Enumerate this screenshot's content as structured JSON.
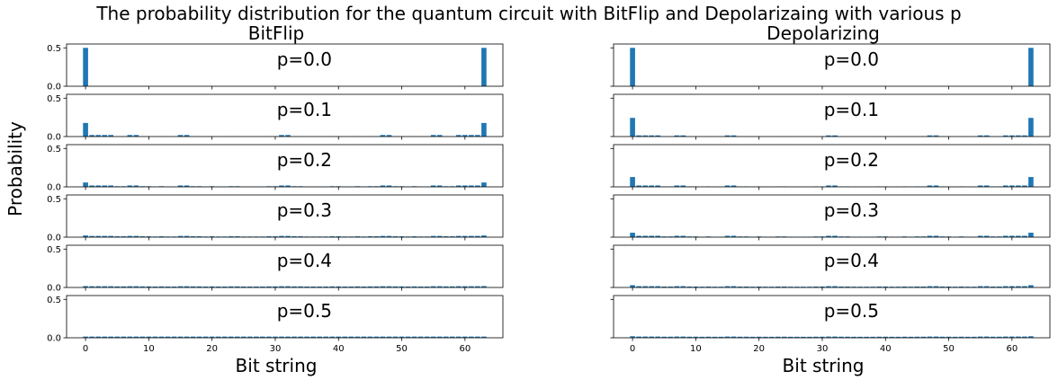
{
  "chart_data": {
    "type": "bar",
    "suptitle": "The probability distribution for the quantum circuit with BitFlip and Depolarizaing with various p",
    "ylabel": "Probability",
    "xlabel": "Bit string",
    "xlim": [
      -3,
      66
    ],
    "ylim": [
      0,
      0.55
    ],
    "xticks": [
      "0",
      "10",
      "20",
      "30",
      "40",
      "50",
      "60"
    ],
    "yticks": [
      "0.0",
      "0.5"
    ],
    "color": "#1f77b4",
    "panels": [
      {
        "title": "BitFlip",
        "rows": [
          {
            "label": "p=0.0",
            "values": [
              0.5,
              0,
              0,
              0,
              0,
              0,
              0,
              0,
              0,
              0,
              0,
              0,
              0,
              0,
              0,
              0,
              0,
              0,
              0,
              0,
              0,
              0,
              0,
              0,
              0,
              0,
              0,
              0,
              0,
              0,
              0,
              0,
              0,
              0,
              0,
              0,
              0,
              0,
              0,
              0,
              0,
              0,
              0,
              0,
              0,
              0,
              0,
              0,
              0,
              0,
              0,
              0,
              0,
              0,
              0,
              0,
              0,
              0,
              0,
              0,
              0,
              0,
              0,
              0.5
            ]
          },
          {
            "label": "p=0.1",
            "values": [
              0.177,
              0.02,
              0.02,
              0.02,
              0.02,
              0.002,
              0.002,
              0.02,
              0.02,
              0.002,
              0.002,
              0.0003,
              0.002,
              0.0003,
              0.0003,
              0.02,
              0.02,
              0.002,
              0.002,
              0.0003,
              0.002,
              0.0003,
              0.0003,
              0.002,
              0.002,
              0.0003,
              0.0003,
              0.0003,
              0.0003,
              0.002,
              0.002,
              0.02,
              0.02,
              0.002,
              0.002,
              0.0003,
              0.0003,
              0.0003,
              0.0003,
              0.002,
              0.002,
              0.0003,
              0.0003,
              0.002,
              0.0003,
              0.002,
              0.002,
              0.02,
              0.02,
              0.002,
              0.002,
              0.0003,
              0.002,
              0.0003,
              0.0003,
              0.02,
              0.02,
              0.002,
              0.002,
              0.02,
              0.02,
              0.02,
              0.02,
              0.177
            ]
          },
          {
            "label": "p=0.2",
            "values": [
              0.057,
              0.018,
              0.018,
              0.018,
              0.018,
              0.008,
              0.008,
              0.018,
              0.018,
              0.008,
              0.008,
              0.003,
              0.008,
              0.003,
              0.003,
              0.018,
              0.018,
              0.008,
              0.008,
              0.003,
              0.008,
              0.003,
              0.003,
              0.008,
              0.008,
              0.003,
              0.003,
              0.003,
              0.003,
              0.008,
              0.008,
              0.018,
              0.018,
              0.008,
              0.008,
              0.003,
              0.003,
              0.003,
              0.003,
              0.008,
              0.008,
              0.003,
              0.003,
              0.008,
              0.003,
              0.008,
              0.008,
              0.018,
              0.018,
              0.008,
              0.008,
              0.003,
              0.008,
              0.003,
              0.003,
              0.018,
              0.018,
              0.008,
              0.008,
              0.018,
              0.018,
              0.018,
              0.018,
              0.057
            ]
          },
          {
            "label": "p=0.3",
            "values": [
              0.022,
              0.016,
              0.016,
              0.016,
              0.016,
              0.011,
              0.011,
              0.016,
              0.016,
              0.011,
              0.011,
              0.008,
              0.011,
              0.008,
              0.008,
              0.016,
              0.016,
              0.011,
              0.011,
              0.008,
              0.011,
              0.008,
              0.008,
              0.011,
              0.011,
              0.008,
              0.008,
              0.008,
              0.008,
              0.011,
              0.011,
              0.016,
              0.016,
              0.011,
              0.011,
              0.008,
              0.008,
              0.008,
              0.008,
              0.011,
              0.011,
              0.008,
              0.008,
              0.011,
              0.008,
              0.011,
              0.011,
              0.016,
              0.016,
              0.011,
              0.011,
              0.008,
              0.011,
              0.008,
              0.008,
              0.016,
              0.016,
              0.011,
              0.011,
              0.016,
              0.016,
              0.016,
              0.016,
              0.022
            ]
          },
          {
            "label": "p=0.4",
            "values": [
              0.018,
              0.016,
              0.016,
              0.016,
              0.016,
              0.014,
              0.014,
              0.016,
              0.016,
              0.014,
              0.014,
              0.012,
              0.014,
              0.012,
              0.012,
              0.016,
              0.016,
              0.014,
              0.014,
              0.012,
              0.014,
              0.012,
              0.012,
              0.014,
              0.014,
              0.012,
              0.012,
              0.012,
              0.012,
              0.014,
              0.014,
              0.016,
              0.016,
              0.014,
              0.014,
              0.012,
              0.012,
              0.012,
              0.012,
              0.014,
              0.014,
              0.012,
              0.012,
              0.014,
              0.012,
              0.014,
              0.014,
              0.016,
              0.016,
              0.014,
              0.014,
              0.012,
              0.014,
              0.012,
              0.012,
              0.016,
              0.016,
              0.014,
              0.014,
              0.016,
              0.016,
              0.016,
              0.016,
              0.018
            ]
          },
          {
            "label": "p=0.5",
            "values": [
              0.0156,
              0.0156,
              0.0156,
              0.0156,
              0.0156,
              0.0156,
              0.0156,
              0.0156,
              0.0156,
              0.0156,
              0.0156,
              0.0156,
              0.0156,
              0.0156,
              0.0156,
              0.0156,
              0.0156,
              0.0156,
              0.0156,
              0.0156,
              0.0156,
              0.0156,
              0.0156,
              0.0156,
              0.0156,
              0.0156,
              0.0156,
              0.0156,
              0.0156,
              0.0156,
              0.0156,
              0.0156,
              0.0156,
              0.0156,
              0.0156,
              0.0156,
              0.0156,
              0.0156,
              0.0156,
              0.0156,
              0.0156,
              0.0156,
              0.0156,
              0.0156,
              0.0156,
              0.0156,
              0.0156,
              0.0156,
              0.0156,
              0.0156,
              0.0156,
              0.0156,
              0.0156,
              0.0156,
              0.0156,
              0.0156,
              0.0156,
              0.0156,
              0.0156,
              0.0156,
              0.0156,
              0.0156,
              0.0156,
              0.0156
            ]
          }
        ]
      },
      {
        "title": "Depolarizing",
        "rows": [
          {
            "label": "p=0.0",
            "values": [
              0.5,
              0,
              0,
              0,
              0,
              0,
              0,
              0,
              0,
              0,
              0,
              0,
              0,
              0,
              0,
              0,
              0,
              0,
              0,
              0,
              0,
              0,
              0,
              0,
              0,
              0,
              0,
              0,
              0,
              0,
              0,
              0,
              0,
              0,
              0,
              0,
              0,
              0,
              0,
              0,
              0,
              0,
              0,
              0,
              0,
              0,
              0,
              0,
              0,
              0,
              0,
              0,
              0,
              0,
              0,
              0,
              0,
              0,
              0,
              0,
              0,
              0,
              0,
              0.5
            ]
          },
          {
            "label": "p=0.1",
            "values": [
              0.243,
              0.015,
              0.015,
              0.015,
              0.015,
              0.001,
              0.001,
              0.015,
              0.015,
              0.001,
              0.001,
              0.0002,
              0.001,
              0.0002,
              0.0002,
              0.015,
              0.015,
              0.001,
              0.001,
              0.0002,
              0.001,
              0.0002,
              0.0002,
              0.001,
              0.001,
              0.0002,
              0.0002,
              0.0002,
              0.0002,
              0.001,
              0.001,
              0.015,
              0.015,
              0.001,
              0.001,
              0.0002,
              0.0002,
              0.0002,
              0.0002,
              0.001,
              0.001,
              0.0002,
              0.0002,
              0.001,
              0.0002,
              0.001,
              0.001,
              0.015,
              0.015,
              0.001,
              0.001,
              0.0002,
              0.001,
              0.0002,
              0.0002,
              0.015,
              0.015,
              0.001,
              0.001,
              0.015,
              0.015,
              0.015,
              0.015,
              0.243
            ]
          },
          {
            "label": "p=0.2",
            "values": [
              0.128,
              0.018,
              0.018,
              0.018,
              0.018,
              0.005,
              0.005,
              0.018,
              0.018,
              0.005,
              0.005,
              0.002,
              0.005,
              0.002,
              0.002,
              0.018,
              0.018,
              0.005,
              0.005,
              0.002,
              0.005,
              0.002,
              0.002,
              0.005,
              0.005,
              0.002,
              0.002,
              0.002,
              0.002,
              0.005,
              0.005,
              0.018,
              0.018,
              0.005,
              0.005,
              0.002,
              0.002,
              0.002,
              0.002,
              0.005,
              0.005,
              0.002,
              0.002,
              0.005,
              0.002,
              0.005,
              0.005,
              0.018,
              0.018,
              0.005,
              0.005,
              0.002,
              0.005,
              0.002,
              0.002,
              0.018,
              0.018,
              0.005,
              0.005,
              0.018,
              0.018,
              0.018,
              0.018,
              0.128
            ]
          },
          {
            "label": "p=0.3",
            "values": [
              0.058,
              0.018,
              0.018,
              0.018,
              0.018,
              0.009,
              0.009,
              0.018,
              0.018,
              0.009,
              0.009,
              0.005,
              0.009,
              0.005,
              0.005,
              0.018,
              0.018,
              0.009,
              0.009,
              0.005,
              0.009,
              0.005,
              0.005,
              0.009,
              0.009,
              0.005,
              0.005,
              0.005,
              0.005,
              0.009,
              0.009,
              0.018,
              0.018,
              0.009,
              0.009,
              0.005,
              0.005,
              0.005,
              0.005,
              0.009,
              0.009,
              0.005,
              0.005,
              0.009,
              0.005,
              0.009,
              0.009,
              0.018,
              0.018,
              0.009,
              0.009,
              0.005,
              0.009,
              0.005,
              0.005,
              0.018,
              0.018,
              0.009,
              0.009,
              0.018,
              0.018,
              0.018,
              0.018,
              0.058
            ]
          },
          {
            "label": "p=0.4",
            "values": [
              0.03,
              0.017,
              0.017,
              0.017,
              0.017,
              0.012,
              0.012,
              0.017,
              0.017,
              0.012,
              0.012,
              0.01,
              0.012,
              0.01,
              0.01,
              0.017,
              0.017,
              0.012,
              0.012,
              0.01,
              0.012,
              0.01,
              0.01,
              0.012,
              0.012,
              0.01,
              0.01,
              0.01,
              0.01,
              0.012,
              0.012,
              0.017,
              0.017,
              0.012,
              0.012,
              0.01,
              0.01,
              0.01,
              0.01,
              0.012,
              0.012,
              0.01,
              0.01,
              0.012,
              0.01,
              0.012,
              0.012,
              0.017,
              0.017,
              0.012,
              0.012,
              0.01,
              0.012,
              0.01,
              0.01,
              0.017,
              0.017,
              0.012,
              0.012,
              0.017,
              0.017,
              0.017,
              0.017,
              0.03
            ]
          },
          {
            "label": "p=0.5",
            "values": [
              0.02,
              0.016,
              0.016,
              0.016,
              0.016,
              0.014,
              0.014,
              0.016,
              0.016,
              0.014,
              0.014,
              0.013,
              0.014,
              0.013,
              0.013,
              0.016,
              0.016,
              0.014,
              0.014,
              0.013,
              0.014,
              0.013,
              0.013,
              0.014,
              0.014,
              0.013,
              0.013,
              0.013,
              0.013,
              0.014,
              0.014,
              0.016,
              0.016,
              0.014,
              0.014,
              0.013,
              0.013,
              0.013,
              0.013,
              0.014,
              0.014,
              0.013,
              0.013,
              0.014,
              0.013,
              0.014,
              0.014,
              0.016,
              0.016,
              0.014,
              0.014,
              0.013,
              0.014,
              0.013,
              0.013,
              0.016,
              0.016,
              0.014,
              0.014,
              0.016,
              0.016,
              0.016,
              0.016,
              0.02
            ]
          }
        ]
      }
    ]
  }
}
